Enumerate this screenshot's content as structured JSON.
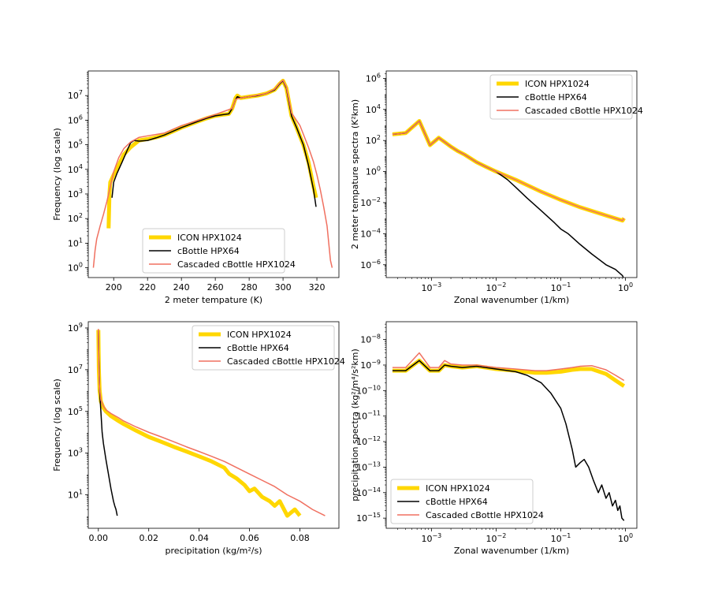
{
  "chart_data": [
    {
      "type": "line",
      "panel": "top-left",
      "xlabel": "2 meter tempature (K)",
      "ylabel": "Frequency (log scale)",
      "xscale": "linear",
      "yscale": "log",
      "xlim": [
        185,
        333
      ],
      "ylim": [
        0.4,
        100000000.0
      ],
      "xticks": [
        200,
        220,
        240,
        260,
        280,
        300,
        320
      ],
      "yticks": [
        {
          "v": 1,
          "base": "10",
          "exp": "0"
        },
        {
          "v": 10,
          "base": "10",
          "exp": "1"
        },
        {
          "v": 100,
          "base": "10",
          "exp": "2"
        },
        {
          "v": 1000,
          "base": "10",
          "exp": "3"
        },
        {
          "v": 10000,
          "base": "10",
          "exp": "4"
        },
        {
          "v": 100000,
          "base": "10",
          "exp": "5"
        },
        {
          "v": 1000000,
          "base": "10",
          "exp": "6"
        },
        {
          "v": 10000000,
          "base": "10",
          "exp": "7"
        }
      ],
      "legend": "lower-center",
      "series": [
        {
          "name": "ICON HPX1024",
          "color": "#ffd700",
          "width": 5,
          "x": [
            197,
            197.5,
            198,
            200,
            203,
            206,
            210,
            215,
            220,
            225,
            230,
            240,
            250,
            255,
            260,
            265,
            268,
            270,
            272,
            273,
            275,
            280,
            285,
            290,
            295,
            298,
            300,
            302,
            305,
            308,
            312,
            315,
            318,
            319.5
          ],
          "y": [
            40,
            1000,
            3000,
            6000,
            15000,
            40000,
            80000,
            150000,
            170000,
            200000,
            250000,
            500000,
            900000,
            1200000,
            1500000,
            1700000,
            1800000,
            3000000,
            8000000,
            10000000,
            8000000,
            9000000,
            10000000,
            12000000,
            17000000,
            30000000,
            40000000,
            20000000,
            1500000,
            500000,
            100000,
            20000,
            2000,
            700
          ]
        },
        {
          "name": "cBottle HPX64",
          "color": "#000000",
          "width": 1.5,
          "x": [
            199,
            200,
            202,
            205,
            208,
            210,
            212,
            215,
            220,
            225,
            230,
            240,
            250,
            255,
            260,
            265,
            268,
            270,
            272,
            273,
            275,
            280,
            285,
            290,
            295,
            298,
            300,
            302,
            305,
            308,
            312,
            315,
            318,
            319.5
          ],
          "y": [
            700,
            3000,
            7000,
            20000,
            60000,
            120000,
            150000,
            140000,
            150000,
            190000,
            250000,
            500000,
            900000,
            1200000,
            1500000,
            1700000,
            1800000,
            3000000,
            7000000,
            9000000,
            8000000,
            9000000,
            10000000,
            12000000,
            17000000,
            30000000,
            40000000,
            20000000,
            1500000,
            500000,
            100000,
            15000,
            1500,
            300
          ]
        },
        {
          "name": "Cascaded cBottle HPX1024",
          "color": "#f07060",
          "width": 1.5,
          "x": [
            188,
            189,
            190,
            192,
            194,
            196,
            198,
            200,
            203,
            206,
            210,
            215,
            220,
            230,
            240,
            250,
            260,
            270,
            272,
            275,
            280,
            290,
            295,
            298,
            300,
            302,
            305,
            310,
            315,
            318,
            320,
            322,
            324,
            326,
            327,
            328,
            329
          ],
          "y": [
            1,
            5,
            15,
            50,
            150,
            500,
            2000,
            8000,
            30000,
            70000,
            130000,
            200000,
            230000,
            300000,
            600000,
            1000000,
            1700000,
            3000000,
            7000000,
            8000000,
            9000000,
            12000000,
            18000000,
            32000000,
            42000000,
            22000000,
            2000000,
            600000,
            80000,
            20000,
            6000,
            1500,
            300,
            50,
            10,
            2,
            1
          ]
        }
      ]
    },
    {
      "type": "line",
      "panel": "top-right",
      "xlabel": "Zonal wavenumber (1/km)",
      "ylabel": "2 meter tempature spectra (K²km)",
      "xscale": "log",
      "yscale": "log",
      "xlim": [
        0.0002,
        1.5
      ],
      "ylim": [
        1.5e-07,
        3000000.0
      ],
      "xticks": [
        {
          "v": 0.001,
          "base": "10",
          "exp": "−3"
        },
        {
          "v": 0.01,
          "base": "10",
          "exp": "−2"
        },
        {
          "v": 0.1,
          "base": "10",
          "exp": "−1"
        },
        {
          "v": 1,
          "base": "10",
          "exp": "0"
        }
      ],
      "yticks": [
        {
          "v": 1e-06,
          "base": "10",
          "exp": "−6"
        },
        {
          "v": 0.0001,
          "base": "10",
          "exp": "−4"
        },
        {
          "v": 0.01,
          "base": "10",
          "exp": "−2"
        },
        {
          "v": 1,
          "base": "10",
          "exp": "0"
        },
        {
          "v": 100,
          "base": "10",
          "exp": "2"
        },
        {
          "v": 10000,
          "base": "10",
          "exp": "4"
        },
        {
          "v": 1000000,
          "base": "10",
          "exp": "6"
        }
      ],
      "legend": "top-right",
      "series": [
        {
          "name": "ICON HPX1024",
          "color": "#ffd700",
          "width": 5,
          "x": [
            0.00025,
            0.0004,
            0.00065,
            0.00095,
            0.0013,
            0.0016,
            0.002,
            0.0026,
            0.0033,
            0.005,
            0.007,
            0.01,
            0.02,
            0.05,
            0.1,
            0.2,
            0.5,
            0.9,
            0.95
          ],
          "y": [
            250,
            300,
            1800,
            50,
            150,
            80,
            40,
            20,
            12,
            4,
            2,
            1,
            0.3,
            0.05,
            0.015,
            0.005,
            0.0015,
            0.0007,
            0.001
          ]
        },
        {
          "name": "cBottle HPX64",
          "color": "#000000",
          "width": 1.5,
          "x": [
            0.00025,
            0.0004,
            0.00065,
            0.00095,
            0.0013,
            0.0016,
            0.002,
            0.0026,
            0.0033,
            0.005,
            0.007,
            0.01,
            0.015,
            0.02,
            0.03,
            0.05,
            0.08,
            0.1,
            0.13,
            0.2,
            0.3,
            0.5,
            0.7,
            0.9,
            0.95
          ],
          "y": [
            250,
            300,
            1800,
            50,
            150,
            80,
            40,
            20,
            12,
            4,
            2,
            1,
            0.3,
            0.1,
            0.02,
            0.003,
            0.0005,
            0.0002,
            0.0001,
            2e-05,
            5e-06,
            1e-06,
            5e-07,
            2e-07,
            1.2e-07
          ]
        },
        {
          "name": "Cascaded cBottle HPX1024",
          "color": "#f07060",
          "width": 1.5,
          "x": [
            0.00025,
            0.0004,
            0.00065,
            0.00095,
            0.0013,
            0.0016,
            0.002,
            0.0026,
            0.0033,
            0.005,
            0.007,
            0.01,
            0.02,
            0.05,
            0.1,
            0.2,
            0.5,
            0.9,
            0.95
          ],
          "y": [
            250,
            300,
            1800,
            50,
            150,
            80,
            40,
            20,
            12,
            4,
            2,
            1,
            0.3,
            0.05,
            0.015,
            0.005,
            0.0015,
            0.0007,
            0.001
          ]
        }
      ]
    },
    {
      "type": "line",
      "panel": "bottom-left",
      "xlabel": "precipitation (kg/m²/s)",
      "ylabel": "Frequency (log scale)",
      "xscale": "linear",
      "yscale": "log",
      "xlim": [
        -0.004,
        0.0955
      ],
      "ylim": [
        0.25,
        2000000000.0
      ],
      "xticks": [
        {
          "v": 0,
          "label": "0.00"
        },
        {
          "v": 0.02,
          "label": "0.02"
        },
        {
          "v": 0.04,
          "label": "0.04"
        },
        {
          "v": 0.06,
          "label": "0.06"
        },
        {
          "v": 0.08,
          "label": "0.08"
        }
      ],
      "yticks": [
        {
          "v": 10,
          "base": "10",
          "exp": "1"
        },
        {
          "v": 1000,
          "base": "10",
          "exp": "3"
        },
        {
          "v": 100000,
          "base": "10",
          "exp": "5"
        },
        {
          "v": 10000000,
          "base": "10",
          "exp": "7"
        },
        {
          "v": 1000000000,
          "base": "10",
          "exp": "9"
        }
      ],
      "legend": "top-right",
      "series": [
        {
          "name": "ICON HPX1024",
          "color": "#ffd700",
          "width": 5,
          "x": [
            0,
            0.0002,
            0.0005,
            0.001,
            0.002,
            0.003,
            0.005,
            0.008,
            0.01,
            0.015,
            0.02,
            0.025,
            0.03,
            0.035,
            0.04,
            0.045,
            0.05,
            0.052,
            0.055,
            0.058,
            0.06,
            0.062,
            0.065,
            0.068,
            0.07,
            0.072,
            0.075,
            0.078,
            0.08
          ],
          "y": [
            800000000,
            10000000,
            1000000,
            300000,
            150000,
            100000,
            60000,
            35000,
            25000,
            12000,
            6000,
            3500,
            2000,
            1200,
            700,
            400,
            200,
            100,
            60,
            30,
            15,
            20,
            8,
            5,
            3,
            5,
            1,
            2,
            1
          ]
        },
        {
          "name": "cBottle HPX64",
          "color": "#000000",
          "width": 1.5,
          "x": [
            0,
            0.0002,
            0.0005,
            0.001,
            0.0015,
            0.002,
            0.003,
            0.004,
            0.005,
            0.0055,
            0.006,
            0.0065,
            0.007,
            0.0075
          ],
          "y": [
            800000000,
            30000000,
            1000000,
            100000,
            10000,
            3000,
            500,
            100,
            20,
            10,
            5,
            3,
            2,
            1
          ]
        },
        {
          "name": "Cascaded cBottle HPX1024",
          "color": "#f07060",
          "width": 1.5,
          "x": [
            0,
            0.0002,
            0.0005,
            0.001,
            0.002,
            0.003,
            0.005,
            0.008,
            0.01,
            0.015,
            0.02,
            0.025,
            0.03,
            0.035,
            0.04,
            0.045,
            0.05,
            0.055,
            0.06,
            0.065,
            0.07,
            0.075,
            0.08,
            0.085,
            0.09
          ],
          "y": [
            900000000,
            12000000,
            1200000,
            350000,
            180000,
            120000,
            80000,
            50000,
            35000,
            18000,
            10000,
            6000,
            3500,
            2000,
            1200,
            700,
            400,
            200,
            100,
            50,
            25,
            10,
            5,
            2,
            1
          ]
        }
      ]
    },
    {
      "type": "line",
      "panel": "bottom-right",
      "xlabel": "Zonal wavenumber (1/km)",
      "ylabel": "precipitation spectra (kg²/m⁴/s²km)",
      "xscale": "log",
      "yscale": "log",
      "xlim": [
        0.0002,
        1.5
      ],
      "ylim": [
        4e-16,
        5e-08
      ],
      "xticks": [
        {
          "v": 0.001,
          "base": "10",
          "exp": "−3"
        },
        {
          "v": 0.01,
          "base": "10",
          "exp": "−2"
        },
        {
          "v": 0.1,
          "base": "10",
          "exp": "−1"
        },
        {
          "v": 1,
          "base": "10",
          "exp": "0"
        }
      ],
      "yticks": [
        {
          "v": 1e-15,
          "base": "10",
          "exp": "−15"
        },
        {
          "v": 1e-14,
          "base": "10",
          "exp": "−14"
        },
        {
          "v": 1e-13,
          "base": "10",
          "exp": "−13"
        },
        {
          "v": 1e-12,
          "base": "10",
          "exp": "−12"
        },
        {
          "v": 1e-11,
          "base": "10",
          "exp": "−11"
        },
        {
          "v": 1e-10,
          "base": "10",
          "exp": "−10"
        },
        {
          "v": 1e-09,
          "base": "10",
          "exp": "−9"
        },
        {
          "v": 1e-08,
          "base": "10",
          "exp": "−8"
        }
      ],
      "legend": "bottom-left",
      "series": [
        {
          "name": "ICON HPX1024",
          "color": "#ffd700",
          "width": 5,
          "x": [
            0.00025,
            0.0004,
            0.00065,
            0.00095,
            0.0013,
            0.0016,
            0.002,
            0.003,
            0.005,
            0.01,
            0.02,
            0.04,
            0.06,
            0.1,
            0.15,
            0.2,
            0.3,
            0.5,
            0.7,
            0.95
          ],
          "y": [
            6e-10,
            6e-10,
            1.5e-09,
            6e-10,
            6e-10,
            1e-09,
            9e-10,
            8e-10,
            9e-10,
            7e-10,
            6e-10,
            5e-10,
            5e-10,
            5.5e-10,
            6.5e-10,
            7e-10,
            7e-10,
            4.5e-10,
            2.5e-10,
            1.5e-10
          ]
        },
        {
          "name": "cBottle HPX64",
          "color": "#000000",
          "width": 1.5,
          "x": [
            0.00025,
            0.0004,
            0.00065,
            0.00095,
            0.0013,
            0.0016,
            0.002,
            0.003,
            0.005,
            0.01,
            0.02,
            0.03,
            0.05,
            0.07,
            0.1,
            0.12,
            0.15,
            0.17,
            0.2,
            0.23,
            0.27,
            0.32,
            0.38,
            0.43,
            0.5,
            0.56,
            0.63,
            0.7,
            0.76,
            0.82,
            0.88,
            0.95
          ],
          "y": [
            6e-10,
            6e-10,
            1.5e-09,
            6e-10,
            6e-10,
            1e-09,
            9e-10,
            8e-10,
            9e-10,
            7e-10,
            5.5e-10,
            4e-10,
            2e-10,
            8e-11,
            2e-11,
            5e-12,
            5e-13,
            1e-13,
            1.5e-13,
            2e-13,
            1e-13,
            3e-14,
            1e-14,
            2e-14,
            6e-15,
            1e-14,
            3e-15,
            5e-15,
            2e-15,
            3e-15,
            1e-15,
            8e-16
          ]
        },
        {
          "name": "Cascaded cBottle HPX1024",
          "color": "#f07060",
          "width": 1.5,
          "x": [
            0.00025,
            0.0004,
            0.00065,
            0.00095,
            0.0013,
            0.0016,
            0.002,
            0.003,
            0.005,
            0.01,
            0.02,
            0.04,
            0.06,
            0.1,
            0.15,
            0.2,
            0.3,
            0.5,
            0.7,
            0.95
          ],
          "y": [
            8e-10,
            8e-10,
            3e-09,
            8e-10,
            8e-10,
            1.5e-09,
            1.1e-09,
            1e-09,
            1e-09,
            8e-10,
            7e-10,
            6e-10,
            6e-10,
            7e-10,
            8e-10,
            9e-10,
            9.5e-10,
            6.5e-10,
            4e-10,
            2.5e-10
          ]
        }
      ]
    }
  ]
}
